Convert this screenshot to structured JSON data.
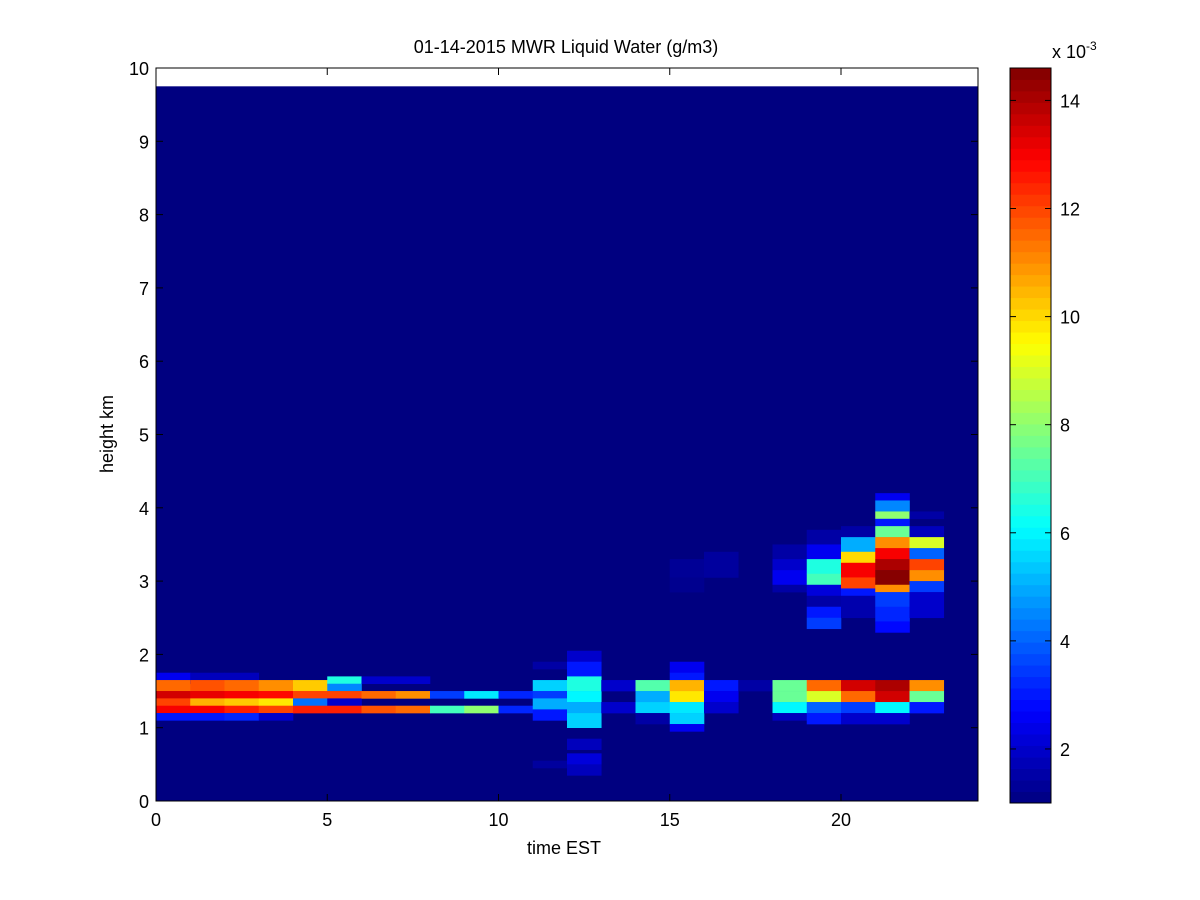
{
  "chart_data": {
    "type": "heatmap",
    "title": "01-14-2015 MWR Liquid Water (g/m3)",
    "xlabel": "time EST",
    "ylabel": "height km",
    "xlim": [
      0,
      24
    ],
    "ylim": [
      0,
      10
    ],
    "x_ticks": [
      0,
      5,
      10,
      15,
      20
    ],
    "y_ticks": [
      0,
      1,
      2,
      3,
      4,
      5,
      6,
      7,
      8,
      9,
      10
    ],
    "colormap": "jet",
    "colorbar": {
      "min": 1.0,
      "max": 14.6,
      "ticks": [
        2,
        4,
        6,
        8,
        10,
        12,
        14
      ],
      "multiplier_label": "x 10",
      "multiplier_exponent": "-3"
    },
    "time_bins": {
      "start": 0,
      "step": 1,
      "count": 24
    },
    "grid_top_km": 9.75,
    "background_value": 1.0,
    "cells": [
      [
        0,
        1.6,
        1.75,
        2.5
      ],
      [
        0,
        1.5,
        1.65,
        11.5
      ],
      [
        0,
        1.4,
        1.5,
        13.5
      ],
      [
        0,
        1.3,
        1.4,
        12.0
      ],
      [
        0,
        1.2,
        1.3,
        13.0
      ],
      [
        0,
        1.1,
        1.2,
        3.0
      ],
      [
        1,
        1.6,
        1.75,
        1.8
      ],
      [
        1,
        1.5,
        1.65,
        11.8
      ],
      [
        1,
        1.4,
        1.5,
        13.2
      ],
      [
        1,
        1.3,
        1.4,
        10.5
      ],
      [
        1,
        1.2,
        1.3,
        13.0
      ],
      [
        1,
        1.1,
        1.2,
        3.0
      ],
      [
        2,
        1.6,
        1.75,
        1.8
      ],
      [
        2,
        1.5,
        1.65,
        11.5
      ],
      [
        2,
        1.4,
        1.5,
        13.0
      ],
      [
        2,
        1.3,
        1.4,
        10.2
      ],
      [
        2,
        1.2,
        1.3,
        12.5
      ],
      [
        2,
        1.1,
        1.2,
        3.2
      ],
      [
        3,
        1.5,
        1.65,
        11.0
      ],
      [
        3,
        1.4,
        1.5,
        12.8
      ],
      [
        3,
        1.3,
        1.4,
        9.8
      ],
      [
        3,
        1.2,
        1.3,
        12.0
      ],
      [
        3,
        1.1,
        1.2,
        2.0
      ],
      [
        4,
        1.5,
        1.65,
        10.2
      ],
      [
        4,
        1.4,
        1.5,
        12.0
      ],
      [
        4,
        1.3,
        1.4,
        4.2
      ],
      [
        4,
        1.2,
        1.3,
        12.5
      ],
      [
        5,
        1.6,
        1.7,
        6.5
      ],
      [
        5,
        1.5,
        1.6,
        4.5
      ],
      [
        5,
        1.4,
        1.5,
        12.0
      ],
      [
        5,
        1.3,
        1.4,
        2.0
      ],
      [
        5,
        1.2,
        1.3,
        12.5
      ],
      [
        6,
        1.6,
        1.7,
        2.0
      ],
      [
        6,
        1.4,
        1.5,
        11.5
      ],
      [
        6,
        1.2,
        1.3,
        11.8
      ],
      [
        7,
        1.6,
        1.7,
        2.0
      ],
      [
        7,
        1.4,
        1.5,
        11.0
      ],
      [
        7,
        1.2,
        1.3,
        11.5
      ],
      [
        8,
        1.4,
        1.5,
        3.5
      ],
      [
        8,
        1.2,
        1.3,
        7.0
      ],
      [
        9,
        1.4,
        1.5,
        5.8
      ],
      [
        9,
        1.2,
        1.3,
        8.0
      ],
      [
        10,
        1.4,
        1.5,
        3.2
      ],
      [
        10,
        1.2,
        1.3,
        3.2
      ],
      [
        11,
        1.8,
        1.9,
        1.5
      ],
      [
        11,
        1.5,
        1.65,
        5.5
      ],
      [
        11,
        1.4,
        1.5,
        3.5
      ],
      [
        11,
        1.25,
        1.4,
        5.0
      ],
      [
        11,
        1.1,
        1.25,
        3.0
      ],
      [
        11,
        0.45,
        0.55,
        1.4
      ],
      [
        12,
        1.9,
        2.05,
        2.0
      ],
      [
        12,
        1.7,
        1.9,
        3.0
      ],
      [
        12,
        1.5,
        1.7,
        6.5
      ],
      [
        12,
        1.35,
        1.5,
        6.0
      ],
      [
        12,
        1.2,
        1.35,
        5.0
      ],
      [
        12,
        1.0,
        1.2,
        5.5
      ],
      [
        12,
        0.7,
        0.85,
        1.8
      ],
      [
        12,
        0.5,
        0.65,
        2.2
      ],
      [
        12,
        0.35,
        0.5,
        1.8
      ],
      [
        13,
        1.5,
        1.65,
        2.0
      ],
      [
        13,
        1.2,
        1.35,
        2.0
      ],
      [
        14,
        1.5,
        1.65,
        7.2
      ],
      [
        14,
        1.35,
        1.5,
        5.0
      ],
      [
        14,
        1.2,
        1.35,
        5.5
      ],
      [
        14,
        1.05,
        1.2,
        1.5
      ],
      [
        15,
        1.75,
        1.9,
        2.5
      ],
      [
        15,
        1.65,
        1.75,
        3.0
      ],
      [
        15,
        1.5,
        1.65,
        10.5
      ],
      [
        15,
        1.35,
        1.5,
        9.8
      ],
      [
        15,
        1.2,
        1.35,
        5.8
      ],
      [
        15,
        1.05,
        1.2,
        5.5
      ],
      [
        15,
        0.95,
        1.05,
        2.5
      ],
      [
        15,
        3.05,
        3.3,
        1.3
      ],
      [
        15,
        2.85,
        3.05,
        1.2
      ],
      [
        16,
        1.5,
        1.65,
        3.0
      ],
      [
        16,
        1.35,
        1.5,
        2.5
      ],
      [
        16,
        1.2,
        1.35,
        2.0
      ],
      [
        16,
        3.05,
        3.4,
        1.4
      ],
      [
        17,
        1.5,
        1.65,
        1.5
      ],
      [
        18,
        3.3,
        3.5,
        1.5
      ],
      [
        18,
        3.15,
        3.3,
        2.0
      ],
      [
        18,
        2.95,
        3.15,
        2.5
      ],
      [
        18,
        2.85,
        2.95,
        1.5
      ],
      [
        18,
        1.5,
        1.65,
        7.5
      ],
      [
        18,
        1.35,
        1.5,
        7.5
      ],
      [
        18,
        1.2,
        1.35,
        6.0
      ],
      [
        18,
        1.1,
        1.2,
        1.8
      ],
      [
        19,
        3.5,
        3.7,
        1.5
      ],
      [
        19,
        3.3,
        3.5,
        2.5
      ],
      [
        19,
        3.1,
        3.3,
        6.5
      ],
      [
        19,
        2.95,
        3.1,
        7.0
      ],
      [
        19,
        2.8,
        2.95,
        2.2
      ],
      [
        19,
        2.65,
        2.8,
        1.5
      ],
      [
        19,
        2.5,
        2.65,
        3.0
      ],
      [
        19,
        2.35,
        2.5,
        3.5
      ],
      [
        19,
        1.5,
        1.65,
        11.5
      ],
      [
        19,
        1.35,
        1.5,
        9.0
      ],
      [
        19,
        1.2,
        1.35,
        4.0
      ],
      [
        19,
        1.05,
        1.2,
        3.0
      ],
      [
        20,
        3.6,
        3.75,
        1.5
      ],
      [
        20,
        3.4,
        3.6,
        5.0
      ],
      [
        20,
        3.25,
        3.4,
        10.0
      ],
      [
        20,
        3.05,
        3.25,
        13.0
      ],
      [
        20,
        2.9,
        3.05,
        12.0
      ],
      [
        20,
        2.8,
        2.9,
        3.0
      ],
      [
        20,
        2.5,
        2.8,
        1.6
      ],
      [
        20,
        1.5,
        1.65,
        13.5
      ],
      [
        20,
        1.35,
        1.5,
        11.5
      ],
      [
        20,
        1.2,
        1.35,
        3.5
      ],
      [
        20,
        1.05,
        1.2,
        2.0
      ],
      [
        21,
        4.1,
        4.2,
        2.5
      ],
      [
        21,
        3.95,
        4.1,
        4.5
      ],
      [
        21,
        3.85,
        3.95,
        8.0
      ],
      [
        21,
        3.75,
        3.85,
        3.0
      ],
      [
        21,
        3.6,
        3.75,
        7.5
      ],
      [
        21,
        3.45,
        3.6,
        11.0
      ],
      [
        21,
        3.3,
        3.45,
        13.0
      ],
      [
        21,
        3.15,
        3.3,
        14.0
      ],
      [
        21,
        2.95,
        3.15,
        14.5
      ],
      [
        21,
        2.85,
        2.95,
        11.0
      ],
      [
        21,
        2.65,
        2.85,
        3.5
      ],
      [
        21,
        2.45,
        2.65,
        3.2
      ],
      [
        21,
        2.3,
        2.45,
        2.8
      ],
      [
        21,
        1.5,
        1.65,
        14.0
      ],
      [
        21,
        1.35,
        1.5,
        13.5
      ],
      [
        21,
        1.2,
        1.35,
        6.0
      ],
      [
        21,
        1.05,
        1.2,
        2.0
      ],
      [
        22,
        3.85,
        3.95,
        1.5
      ],
      [
        22,
        3.6,
        3.75,
        1.8
      ],
      [
        22,
        3.45,
        3.6,
        9.0
      ],
      [
        22,
        3.3,
        3.45,
        4.0
      ],
      [
        22,
        3.15,
        3.3,
        12.0
      ],
      [
        22,
        3.0,
        3.15,
        11.0
      ],
      [
        22,
        2.85,
        3.0,
        3.5
      ],
      [
        22,
        2.5,
        2.85,
        2.0
      ],
      [
        22,
        1.5,
        1.65,
        11.0
      ],
      [
        22,
        1.35,
        1.5,
        7.5
      ],
      [
        22,
        1.2,
        1.35,
        3.0
      ]
    ]
  }
}
